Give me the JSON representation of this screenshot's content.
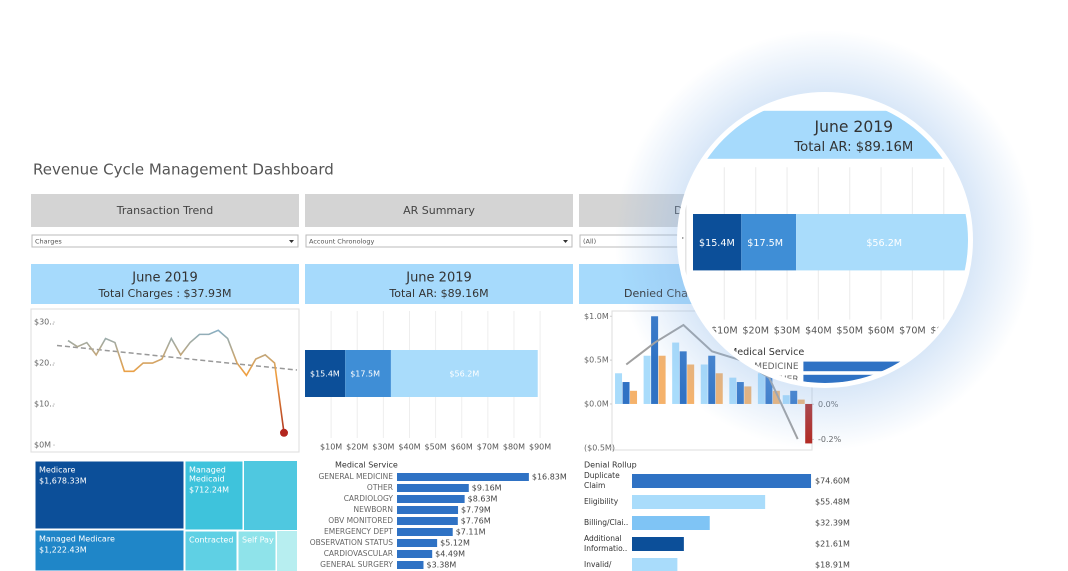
{
  "title": "Revenue Cycle Management Dashboard",
  "panels": [
    {
      "tab": "Transaction Trend",
      "filter": "Charges",
      "month": "June 2019",
      "total": "Total Charges : $37.93M"
    },
    {
      "tab": "AR Summary",
      "filter": "Account Chronology",
      "month": "June 2019",
      "total": "Total AR: $89.16M"
    },
    {
      "tab": "De",
      "filter": "(All)",
      "total": "Denied Charge"
    }
  ],
  "chart_data": [
    {
      "type": "line",
      "values": [
        25.5,
        24,
        25,
        22,
        26,
        25,
        18,
        18,
        20,
        20,
        21,
        26,
        22,
        25,
        27,
        27,
        28,
        26,
        20,
        17,
        21,
        22,
        20,
        3
      ],
      "trend": [
        24.3,
        18.3
      ],
      "trend_color": "#999999",
      "end_color": "#b3261e",
      "ylim": [
        -1.2,
        32.7
      ],
      "yticks": [
        {
          "value": 0,
          "label": "$0M"
        },
        {
          "value": 10,
          "label": "$10.."
        },
        {
          "value": 20,
          "label": "$20.."
        },
        {
          "value": 30,
          "label": "$30.."
        }
      ]
    },
    {
      "type": "stacked_bar",
      "orientation": "horizontal",
      "values": [
        15.4,
        17.5,
        56.2
      ],
      "value_labels": [
        "$15.4M",
        "$17.5M",
        "$56.2M"
      ],
      "colors": [
        "#0c4f99",
        "#3f8ed6",
        "#a9dcfb"
      ],
      "xlim": [
        0,
        102.6
      ],
      "xticks": [
        {
          "value": 10,
          "label": "$10M"
        },
        {
          "value": 20,
          "label": "$20M"
        },
        {
          "value": 30,
          "label": "$30M"
        },
        {
          "value": 40,
          "label": "$40M"
        },
        {
          "value": 50,
          "label": "$50M"
        },
        {
          "value": 60,
          "label": "$60M"
        },
        {
          "value": 70,
          "label": "$70M"
        },
        {
          "value": 80,
          "label": "$80M"
        },
        {
          "value": 90,
          "label": "$90M"
        }
      ],
      "grid": true
    },
    {
      "type": "combo",
      "categories": [
        null,
        null,
        null,
        null,
        null,
        null,
        null
      ],
      "series": [
        {
          "kind": "bar",
          "color": "#a9dcfb",
          "values": [
            0.35,
            0.55,
            0.7,
            0.45,
            0.3,
            0.35,
            0.1
          ]
        },
        {
          "kind": "bar",
          "color": "#2f72c4",
          "values": [
            0.25,
            1.0,
            0.6,
            0.55,
            0.25,
            0.4,
            0.15
          ]
        },
        {
          "kind": "bar",
          "color": "#f5b26b",
          "values": [
            0.15,
            0.55,
            0.45,
            0.35,
            0.2,
            0.15,
            0.05
          ]
        },
        {
          "kind": "bar",
          "color": "#b3261e",
          "values": [
            null,
            null,
            null,
            null,
            null,
            null,
            -0.45
          ]
        },
        {
          "kind": "line",
          "color": "#a0a0a0",
          "values": [
            0.45,
            0.7,
            0.9,
            0.6,
            0.5,
            0.3,
            -0.4
          ]
        }
      ],
      "ylim": [
        -0.525,
        1.06
      ],
      "yticks": [
        {
          "value": -0.5,
          "label": "($0.5M)"
        },
        {
          "value": 0,
          "label": "$0.0M"
        },
        {
          "value": 0.5,
          "label": "$0.5M"
        },
        {
          "value": 1,
          "label": "$1.0M"
        }
      ],
      "y2lim": [
        -0.26,
        0.53
      ],
      "y2ticks": [
        {
          "value": -0.2,
          "label": "-0.2%"
        },
        {
          "value": 0,
          "label": "0.0%"
        }
      ]
    },
    {
      "type": "treemap",
      "items": [
        {
          "label": "Medicare",
          "value": 1678.33,
          "value_label": "$1,678.33M",
          "color": "#0c4f99"
        },
        {
          "label": "Managed Medicare",
          "value": 1222.43,
          "value_label": "$1,222.43M",
          "color": "#1f86c8"
        },
        {
          "label": [
            "Managed",
            "Medicaid"
          ],
          "value": 712.24,
          "value_label": "$712.24M",
          "color": "#3ec3dc"
        },
        {
          "label": "Contracted",
          "color": "#5fd0e4"
        },
        {
          "label": "Self Pay",
          "color": "#8fe3ea"
        }
      ]
    },
    {
      "type": "bar",
      "orientation": "horizontal",
      "title": "Medical Service",
      "categories": [
        "GENERAL MEDICINE",
        "OTHER",
        "CARDIOLOGY",
        "NEWBORN",
        "OBV MONITORED",
        "EMERGENCY DEPT",
        "OBSERVATION STATUS",
        "CARDIOVASCULAR",
        "GENERAL SURGERY"
      ],
      "values": [
        16.83,
        9.16,
        8.63,
        7.79,
        7.76,
        7.11,
        5.12,
        4.49,
        3.38
      ],
      "value_labels": [
        "$16.83M",
        "$9.16M",
        "$8.63M",
        "$7.79M",
        "$7.76M",
        "$7.11M",
        "$5.12M",
        "$4.49M",
        "$3.38M"
      ],
      "color": "#2f72c4",
      "xlim": [
        0,
        20.8
      ]
    },
    {
      "type": "bar",
      "orientation": "horizontal",
      "title": "Denial Rollup",
      "categories": [
        [
          "Duplicate",
          "Claim"
        ],
        "Eligibility",
        "Billing/Clai..",
        [
          "Additional",
          "Informatio.."
        ],
        [
          "Invalid/"
        ]
      ],
      "values": [
        74.6,
        55.48,
        32.39,
        21.61,
        18.91
      ],
      "value_labels": [
        "$74.60M",
        "$55.48M",
        "$32.39M",
        "$21.61M",
        "$18.91M"
      ],
      "colors": [
        "#2f72c4",
        "#a9dcfb",
        "#7fc4f5",
        "#0c4f99",
        "#a9dcfb"
      ],
      "xlim": [
        0,
        75
      ]
    }
  ]
}
